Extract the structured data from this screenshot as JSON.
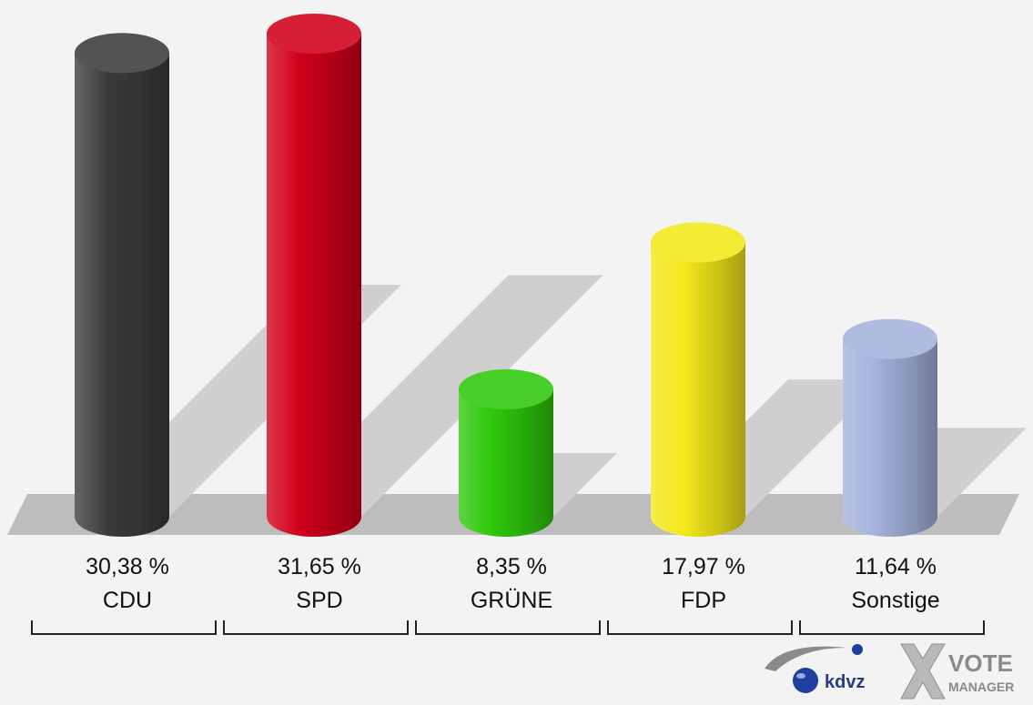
{
  "chart_data": {
    "type": "bar",
    "style": "3d-cylinder",
    "categories": [
      "CDU",
      "SPD",
      "GRÜNE",
      "FDP",
      "Sonstige"
    ],
    "values": [
      30.38,
      31.65,
      8.35,
      17.97,
      11.64
    ],
    "value_labels": [
      "30,38 %",
      "31,65 %",
      "8,35 %",
      "17,97 %",
      "11,64 %"
    ],
    "colors": [
      "#3b3b3b",
      "#d0001a",
      "#2ec80a",
      "#f3e81a",
      "#a4b2dc"
    ],
    "ylim": [
      0,
      31.65
    ],
    "title": "",
    "xlabel": "",
    "ylabel": "",
    "grid": false,
    "legend": "none"
  },
  "branding": {
    "logo_left_text": "kdvz",
    "logo_right_line1": "VOTE",
    "logo_right_line2": "MANAGER"
  }
}
